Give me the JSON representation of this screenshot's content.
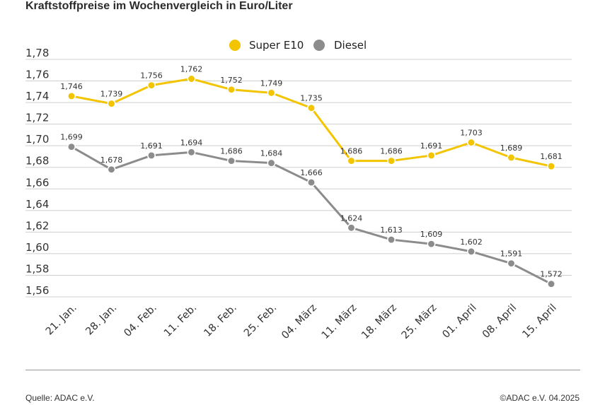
{
  "header": {
    "title": "Kraftstoffpreise im Wochenvergleich in Euro/Liter"
  },
  "footer": {
    "source": "Quelle: ADAC e.V.",
    "copyright": "©ADAC e.V. 04.2025"
  },
  "chart_data": {
    "type": "line",
    "title": "Kraftstoffpreise im Wochenvergleich in Euro/Liter",
    "xlabel": "",
    "ylabel": "",
    "categories": [
      "21. Jan.",
      "28. Jan.",
      "04. Feb.",
      "11. Feb.",
      "18. Feb.",
      "25. Feb.",
      "04. März",
      "11. März",
      "18. März",
      "25. März",
      "01. April",
      "08. April",
      "15. April"
    ],
    "series": [
      {
        "name": "Super E10",
        "color": "#f2c500",
        "values": [
          1.746,
          1.739,
          1.756,
          1.762,
          1.752,
          1.749,
          1.735,
          1.686,
          1.686,
          1.691,
          1.703,
          1.689,
          1.681
        ],
        "labels": [
          "1,746",
          "1,739",
          "1,756",
          "1,762",
          "1,752",
          "1,749",
          "1,735",
          "1,686",
          "1,686",
          "1,691",
          "1,703",
          "1,689",
          "1,681"
        ]
      },
      {
        "name": "Diesel",
        "color": "#8c8c8c",
        "values": [
          1.699,
          1.678,
          1.691,
          1.694,
          1.686,
          1.684,
          1.666,
          1.624,
          1.613,
          1.609,
          1.602,
          1.591,
          1.572
        ],
        "labels": [
          "1,699",
          "1,678",
          "1,691",
          "1,694",
          "1,686",
          "1,684",
          "1,666",
          "1,624",
          "1,613",
          "1,609",
          "1,602",
          "1,591",
          "1,572"
        ]
      }
    ],
    "yticks": [
      1.56,
      1.58,
      1.6,
      1.62,
      1.64,
      1.66,
      1.68,
      1.7,
      1.72,
      1.74,
      1.76,
      1.78
    ],
    "ytick_labels": [
      "1,56",
      "1,58",
      "1,60",
      "1,62",
      "1,64",
      "1,66",
      "1,68",
      "1,70",
      "1,72",
      "1,74",
      "1,76",
      "1,78"
    ],
    "ylim": [
      1.56,
      1.78
    ],
    "grid": true,
    "legend_position": "top-center"
  }
}
